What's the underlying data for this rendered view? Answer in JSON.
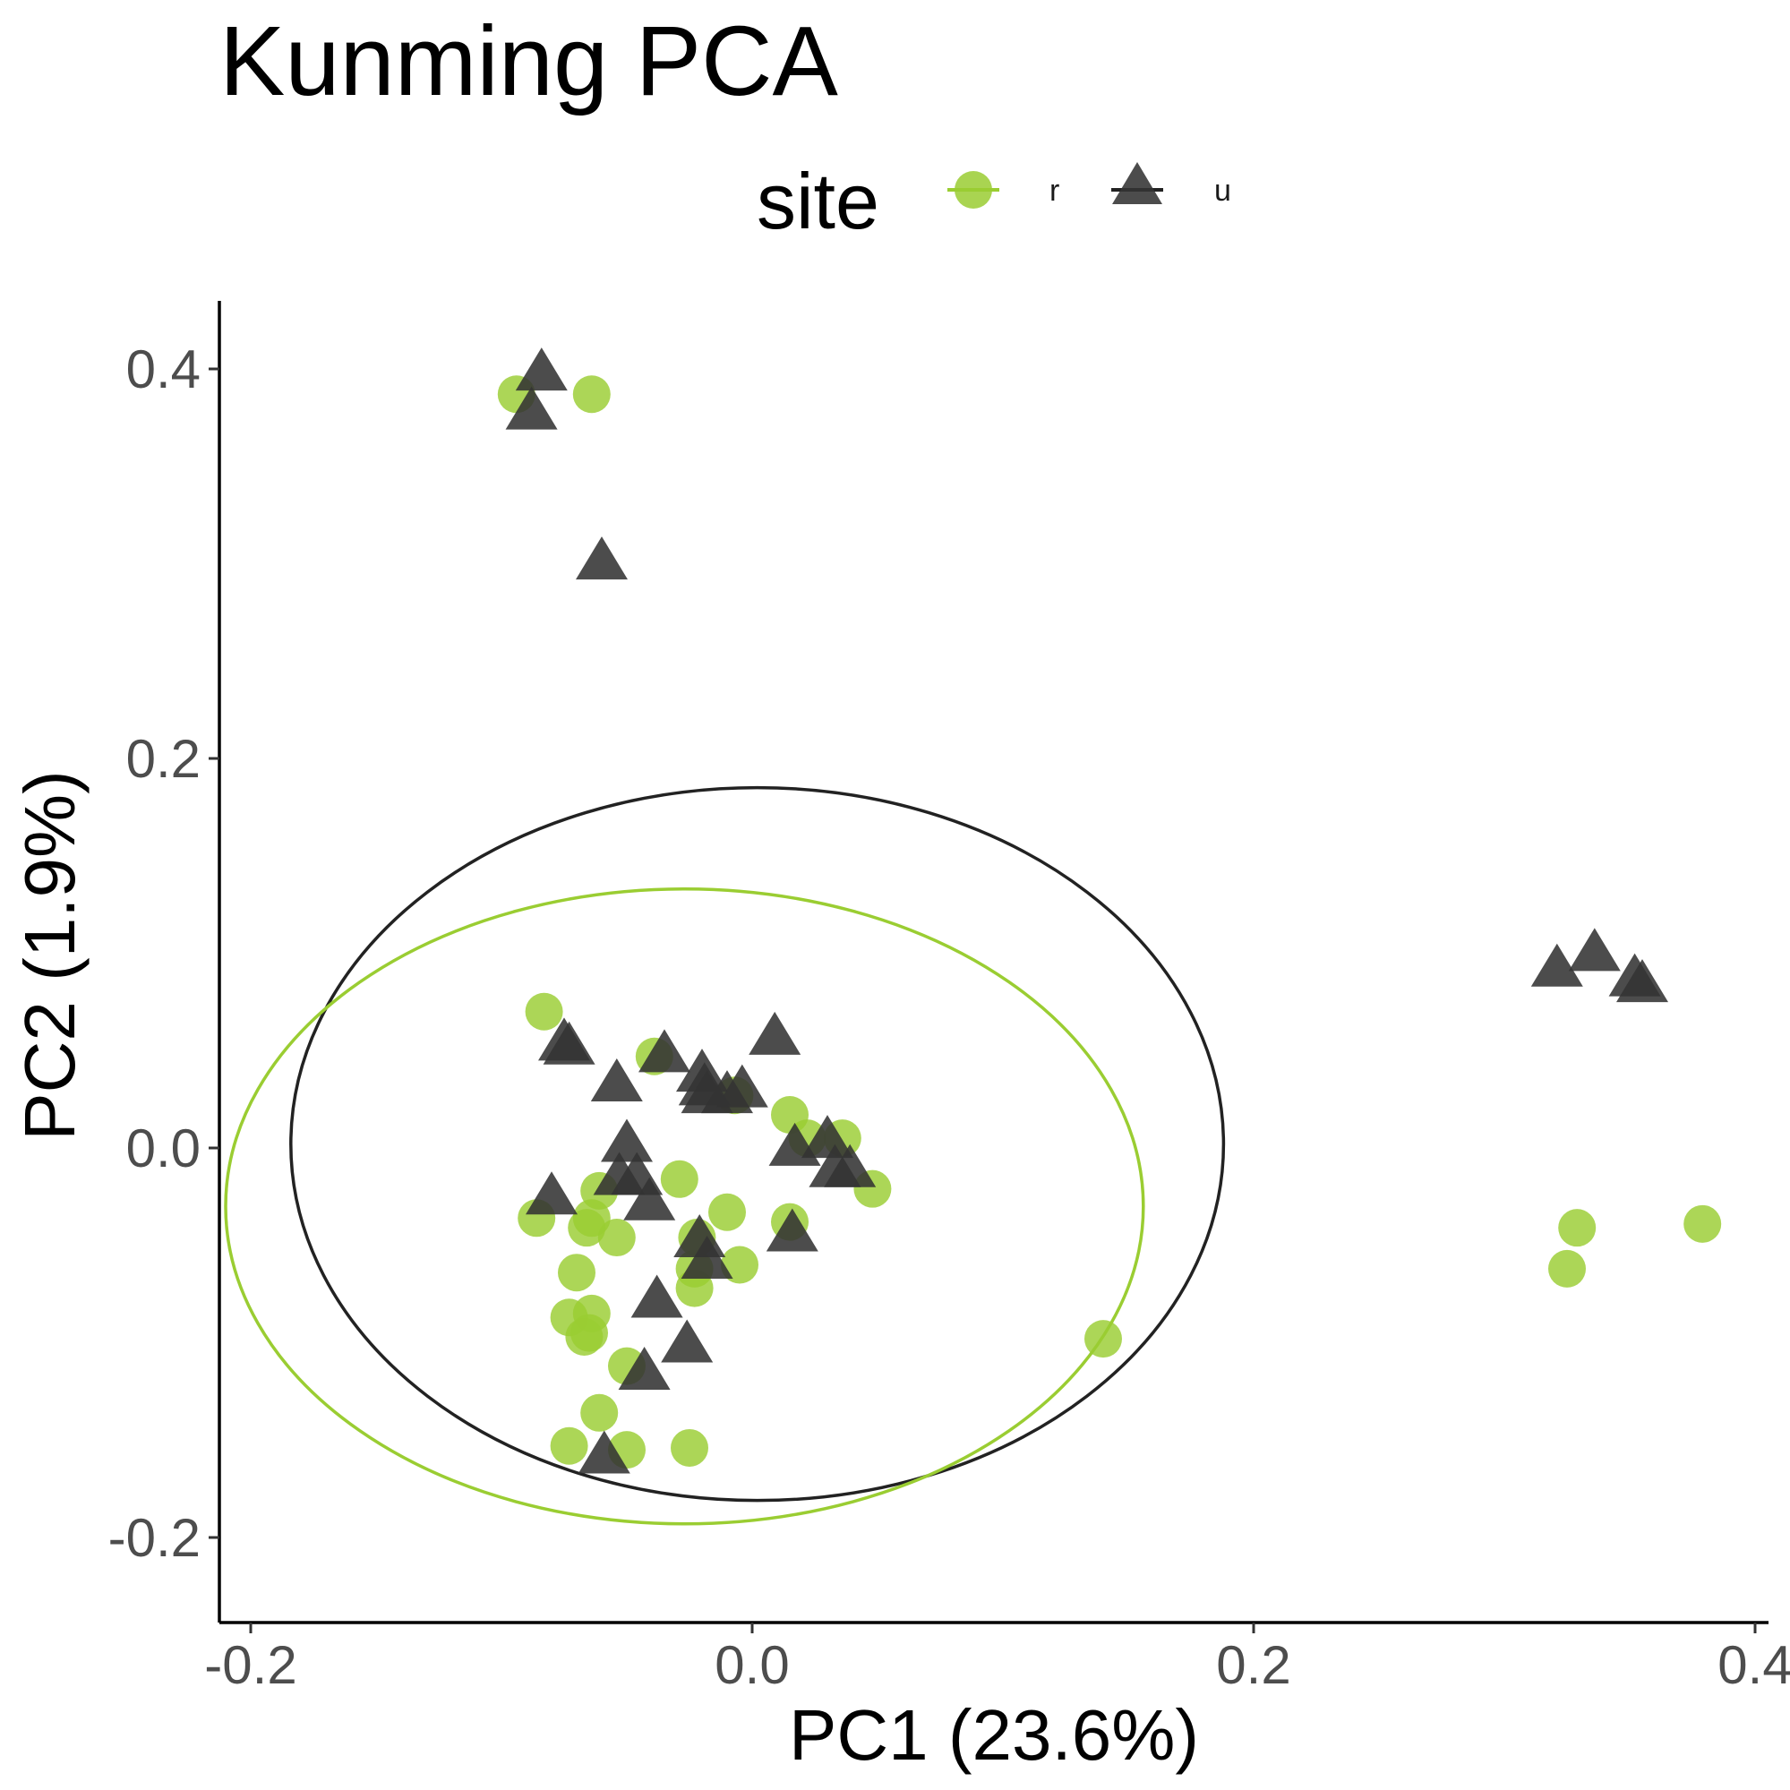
{
  "chart_data": {
    "type": "scatter",
    "title": "Kunming PCA",
    "xlabel": "PC1 (23.6%)",
    "ylabel": "PC2 (1.9%)",
    "xlim": [
      -0.2,
      0.4
    ],
    "ylim": [
      -0.2,
      0.4
    ],
    "x_ticks": [
      "-0.2",
      "0.0",
      "0.2",
      "0.4"
    ],
    "y_ticks": [
      "-0.2",
      "0.0",
      "0.2",
      "0.4"
    ],
    "grid": false,
    "legend": {
      "title": "site",
      "position": "top",
      "entries": [
        {
          "label": "r",
          "shape": "circle",
          "color": "#9ACD32"
        },
        {
          "label": "u",
          "shape": "triangle",
          "color": "#333333"
        }
      ]
    },
    "series": [
      {
        "name": "r",
        "shape": "circle",
        "color": "#9ACD32",
        "points": [
          [
            -0.094,
            0.387
          ],
          [
            -0.064,
            0.387
          ],
          [
            -0.083,
            0.07
          ],
          [
            -0.039,
            0.047
          ],
          [
            -0.007,
            0.027
          ],
          [
            0.015,
            0.017
          ],
          [
            0.022,
            0.005
          ],
          [
            0.036,
            0.005
          ],
          [
            0.048,
            -0.021
          ],
          [
            -0.029,
            -0.016
          ],
          [
            -0.061,
            -0.022
          ],
          [
            -0.086,
            -0.036
          ],
          [
            -0.064,
            -0.036
          ],
          [
            -0.066,
            -0.041
          ],
          [
            -0.054,
            -0.046
          ],
          [
            -0.01,
            -0.033
          ],
          [
            -0.022,
            -0.046
          ],
          [
            0.015,
            -0.038
          ],
          [
            -0.07,
            -0.064
          ],
          [
            -0.023,
            -0.062
          ],
          [
            -0.005,
            -0.06
          ],
          [
            -0.023,
            -0.072
          ],
          [
            -0.064,
            -0.085
          ],
          [
            -0.073,
            -0.087
          ],
          [
            -0.065,
            -0.095
          ],
          [
            -0.067,
            -0.097
          ],
          [
            -0.05,
            -0.112
          ],
          [
            -0.061,
            -0.136
          ],
          [
            -0.073,
            -0.153
          ],
          [
            -0.05,
            -0.155
          ],
          [
            -0.025,
            -0.154
          ],
          [
            0.14,
            -0.098
          ],
          [
            0.329,
            -0.041
          ],
          [
            0.379,
            -0.039
          ],
          [
            0.325,
            -0.062
          ]
        ]
      },
      {
        "name": "u",
        "shape": "triangle",
        "color": "#333333",
        "points": [
          [
            -0.084,
            0.399
          ],
          [
            -0.088,
            0.379
          ],
          [
            -0.06,
            0.302
          ],
          [
            -0.075,
            0.055
          ],
          [
            -0.073,
            0.053
          ],
          [
            -0.035,
            0.049
          ],
          [
            -0.054,
            0.034
          ],
          [
            -0.02,
            0.039
          ],
          [
            -0.019,
            0.032
          ],
          [
            -0.018,
            0.028
          ],
          [
            -0.01,
            0.028
          ],
          [
            -0.004,
            0.031
          ],
          [
            0.009,
            0.058
          ],
          [
            0.017,
            0.001
          ],
          [
            0.03,
            0.005
          ],
          [
            0.033,
            -0.01
          ],
          [
            0.039,
            -0.01
          ],
          [
            -0.05,
            0.003
          ],
          [
            -0.053,
            -0.014
          ],
          [
            -0.046,
            -0.014
          ],
          [
            -0.08,
            -0.024
          ],
          [
            -0.041,
            -0.027
          ],
          [
            -0.021,
            -0.046
          ],
          [
            -0.018,
            -0.057
          ],
          [
            0.016,
            -0.043
          ],
          [
            -0.038,
            -0.077
          ],
          [
            -0.026,
            -0.1
          ],
          [
            -0.043,
            -0.114
          ],
          [
            -0.059,
            -0.157
          ],
          [
            0.321,
            0.093
          ],
          [
            0.336,
            0.101
          ],
          [
            0.352,
            0.088
          ],
          [
            0.355,
            0.085
          ]
        ]
      }
    ],
    "ellipses": [
      {
        "group": "u",
        "color": "#222222",
        "center": [
          0.002,
          0.002
        ],
        "rx": 0.186,
        "ry": 0.183
      },
      {
        "group": "r",
        "color": "#9ACD32",
        "center": [
          -0.027,
          -0.03
        ],
        "rx": 0.183,
        "ry": 0.163
      }
    ]
  }
}
